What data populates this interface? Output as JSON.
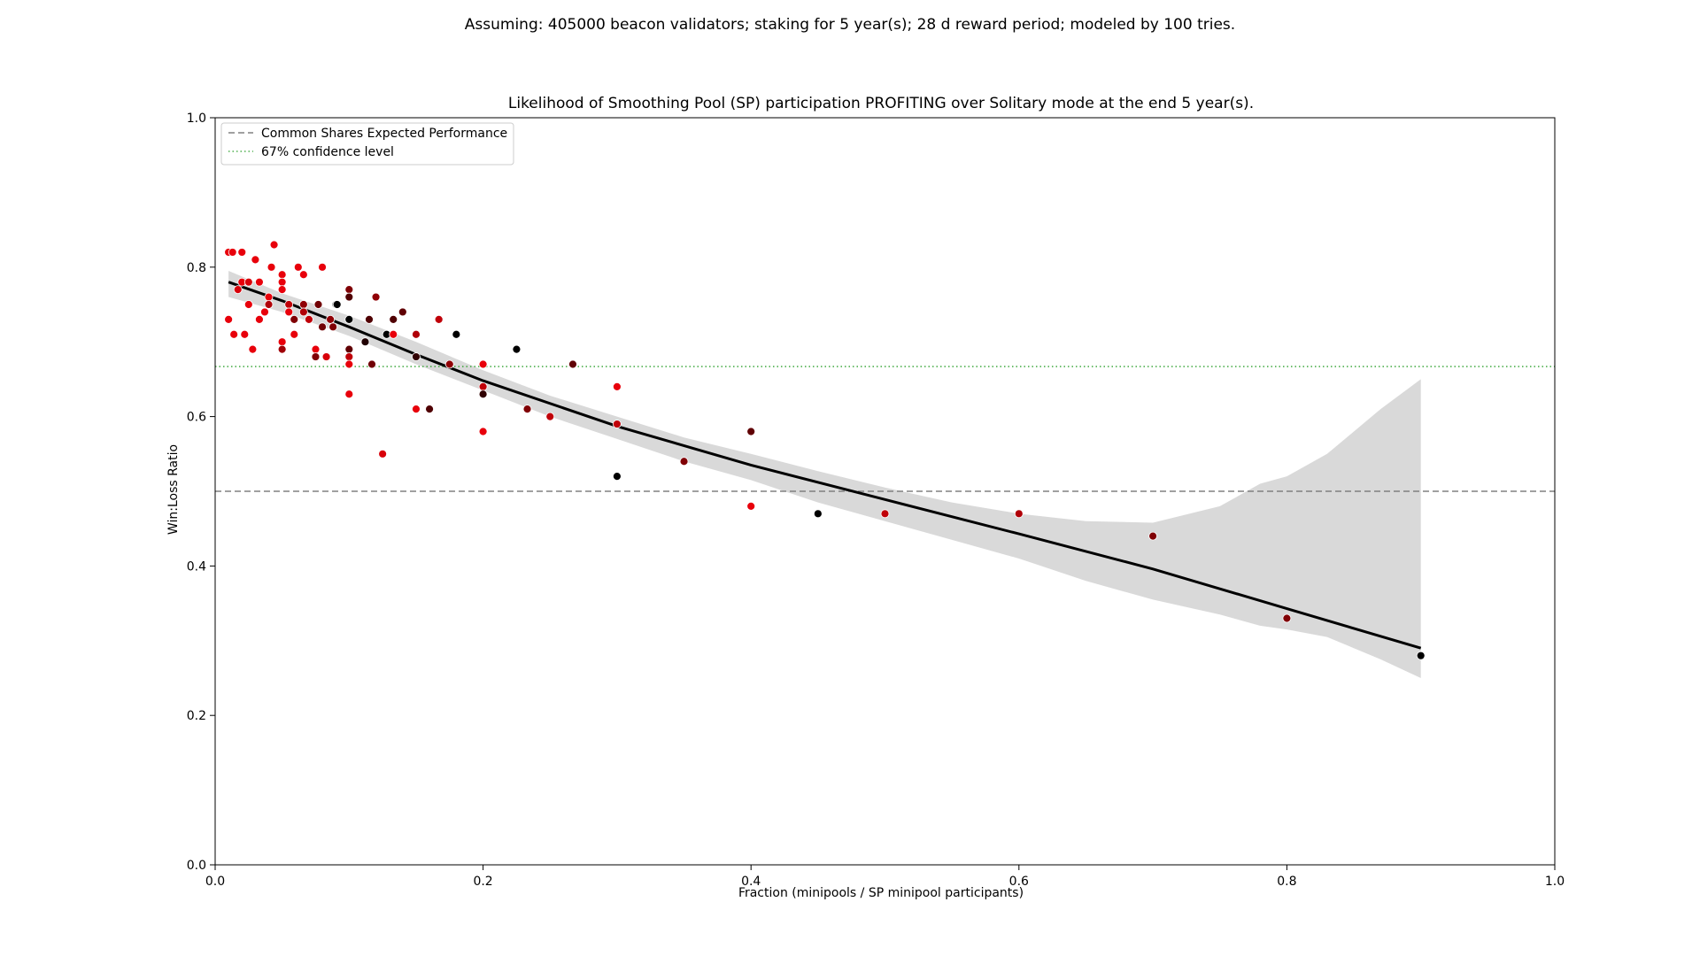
{
  "suptitle": "Assuming: 405000 beacon validators; staking for 5 year(s); 28 d reward period; modeled by 100 tries.",
  "chart_data": {
    "type": "scatter",
    "title": "Likelihood of Smoothing Pool (SP) participation PROFITING over Solitary mode at the end 5 year(s).",
    "xlabel": "Fraction (minipools / SP minipool participants)",
    "ylabel": "Win:Loss Ratio",
    "xlim": [
      0.0,
      1.0
    ],
    "ylim": [
      0.0,
      1.0
    ],
    "xticks": [
      0.0,
      0.2,
      0.4,
      0.6,
      0.8,
      1.0
    ],
    "yticks": [
      0.0,
      0.2,
      0.4,
      0.6,
      0.8,
      1.0
    ],
    "xtick_labels": [
      "0.0",
      "0.2",
      "0.4",
      "0.6",
      "0.8",
      "1.0"
    ],
    "ytick_labels": [
      "0.0",
      "0.2",
      "0.4",
      "0.6",
      "0.8",
      "1.0"
    ],
    "grid": false,
    "legend_position": "top-left",
    "legend": [
      {
        "label": "Common Shares Expected Performance",
        "style": "dashed",
        "color": "#808080"
      },
      {
        "label": "67% confidence level",
        "style": "dotted",
        "color": "#2ca02c"
      }
    ],
    "hlines": [
      {
        "y": 0.5,
        "style": "dashed",
        "color": "#808080"
      },
      {
        "y": 0.667,
        "style": "dotted",
        "color": "#2ca02c"
      }
    ],
    "points": [
      {
        "x": 0.01,
        "y": 0.82,
        "color": "#e8000b"
      },
      {
        "x": 0.013,
        "y": 0.82,
        "color": "#e8000b"
      },
      {
        "x": 0.01,
        "y": 0.73,
        "color": "#e8000b"
      },
      {
        "x": 0.014,
        "y": 0.71,
        "color": "#e8000b"
      },
      {
        "x": 0.017,
        "y": 0.77,
        "color": "#d8000a"
      },
      {
        "x": 0.02,
        "y": 0.78,
        "color": "#e8000b"
      },
      {
        "x": 0.02,
        "y": 0.82,
        "color": "#e8000b"
      },
      {
        "x": 0.022,
        "y": 0.71,
        "color": "#e8000b"
      },
      {
        "x": 0.025,
        "y": 0.75,
        "color": "#e8000b"
      },
      {
        "x": 0.025,
        "y": 0.78,
        "color": "#d8000a"
      },
      {
        "x": 0.028,
        "y": 0.69,
        "color": "#e8000b"
      },
      {
        "x": 0.03,
        "y": 0.81,
        "color": "#e8000b"
      },
      {
        "x": 0.033,
        "y": 0.78,
        "color": "#e8000b"
      },
      {
        "x": 0.033,
        "y": 0.73,
        "color": "#e8000b"
      },
      {
        "x": 0.037,
        "y": 0.74,
        "color": "#e8000b"
      },
      {
        "x": 0.04,
        "y": 0.76,
        "color": "#e8000b"
      },
      {
        "x": 0.04,
        "y": 0.75,
        "color": "#b00008"
      },
      {
        "x": 0.042,
        "y": 0.8,
        "color": "#e8000b"
      },
      {
        "x": 0.044,
        "y": 0.83,
        "color": "#e8000b"
      },
      {
        "x": 0.05,
        "y": 0.79,
        "color": "#e8000b"
      },
      {
        "x": 0.05,
        "y": 0.78,
        "color": "#e8000b"
      },
      {
        "x": 0.05,
        "y": 0.77,
        "color": "#e8000b"
      },
      {
        "x": 0.05,
        "y": 0.7,
        "color": "#e8000b"
      },
      {
        "x": 0.05,
        "y": 0.69,
        "color": "#a00007"
      },
      {
        "x": 0.055,
        "y": 0.75,
        "color": "#c00009"
      },
      {
        "x": 0.055,
        "y": 0.74,
        "color": "#e8000b"
      },
      {
        "x": 0.059,
        "y": 0.73,
        "color": "#800005"
      },
      {
        "x": 0.059,
        "y": 0.71,
        "color": "#e8000b"
      },
      {
        "x": 0.062,
        "y": 0.8,
        "color": "#e8000b"
      },
      {
        "x": 0.066,
        "y": 0.79,
        "color": "#e8000b"
      },
      {
        "x": 0.066,
        "y": 0.75,
        "color": "#900006"
      },
      {
        "x": 0.066,
        "y": 0.74,
        "color": "#b00008"
      },
      {
        "x": 0.07,
        "y": 0.73,
        "color": "#c00009"
      },
      {
        "x": 0.075,
        "y": 0.69,
        "color": "#e8000b"
      },
      {
        "x": 0.075,
        "y": 0.68,
        "color": "#800005"
      },
      {
        "x": 0.077,
        "y": 0.75,
        "color": "#700004"
      },
      {
        "x": 0.08,
        "y": 0.8,
        "color": "#e8000b"
      },
      {
        "x": 0.08,
        "y": 0.72,
        "color": "#700004"
      },
      {
        "x": 0.083,
        "y": 0.68,
        "color": "#d8000a"
      },
      {
        "x": 0.086,
        "y": 0.73,
        "color": "#900006"
      },
      {
        "x": 0.088,
        "y": 0.72,
        "color": "#800005"
      },
      {
        "x": 0.09,
        "y": 0.75,
        "color": "#a0a0a0"
      },
      {
        "x": 0.091,
        "y": 0.75,
        "color": "#000000"
      },
      {
        "x": 0.1,
        "y": 0.77,
        "color": "#800005"
      },
      {
        "x": 0.1,
        "y": 0.76,
        "color": "#500003"
      },
      {
        "x": 0.1,
        "y": 0.73,
        "color": "#000000"
      },
      {
        "x": 0.1,
        "y": 0.69,
        "color": "#600004"
      },
      {
        "x": 0.1,
        "y": 0.68,
        "color": "#c00009"
      },
      {
        "x": 0.1,
        "y": 0.67,
        "color": "#e8000b"
      },
      {
        "x": 0.1,
        "y": 0.63,
        "color": "#e8000b"
      },
      {
        "x": 0.112,
        "y": 0.7,
        "color": "#200001"
      },
      {
        "x": 0.115,
        "y": 0.73,
        "color": "#500003"
      },
      {
        "x": 0.117,
        "y": 0.67,
        "color": "#700004"
      },
      {
        "x": 0.12,
        "y": 0.76,
        "color": "#900006"
      },
      {
        "x": 0.125,
        "y": 0.55,
        "color": "#d8000a"
      },
      {
        "x": 0.128,
        "y": 0.71,
        "color": "#000000"
      },
      {
        "x": 0.133,
        "y": 0.73,
        "color": "#500003"
      },
      {
        "x": 0.133,
        "y": 0.71,
        "color": "#e8000b"
      },
      {
        "x": 0.14,
        "y": 0.74,
        "color": "#600004"
      },
      {
        "x": 0.15,
        "y": 0.71,
        "color": "#b00008"
      },
      {
        "x": 0.15,
        "y": 0.68,
        "color": "#300002"
      },
      {
        "x": 0.15,
        "y": 0.61,
        "color": "#e8000b"
      },
      {
        "x": 0.16,
        "y": 0.61,
        "color": "#500003"
      },
      {
        "x": 0.167,
        "y": 0.73,
        "color": "#c00009"
      },
      {
        "x": 0.175,
        "y": 0.67,
        "color": "#900006"
      },
      {
        "x": 0.18,
        "y": 0.71,
        "color": "#000000"
      },
      {
        "x": 0.2,
        "y": 0.67,
        "color": "#e8000b"
      },
      {
        "x": 0.2,
        "y": 0.64,
        "color": "#c00009"
      },
      {
        "x": 0.2,
        "y": 0.63,
        "color": "#300002"
      },
      {
        "x": 0.2,
        "y": 0.58,
        "color": "#e8000b"
      },
      {
        "x": 0.225,
        "y": 0.69,
        "color": "#000000"
      },
      {
        "x": 0.233,
        "y": 0.61,
        "color": "#800005"
      },
      {
        "x": 0.25,
        "y": 0.6,
        "color": "#c00009"
      },
      {
        "x": 0.267,
        "y": 0.67,
        "color": "#600004"
      },
      {
        "x": 0.3,
        "y": 0.64,
        "color": "#e8000b"
      },
      {
        "x": 0.3,
        "y": 0.59,
        "color": "#c00009"
      },
      {
        "x": 0.3,
        "y": 0.52,
        "color": "#000000"
      },
      {
        "x": 0.35,
        "y": 0.54,
        "color": "#800005"
      },
      {
        "x": 0.4,
        "y": 0.58,
        "color": "#600004"
      },
      {
        "x": 0.4,
        "y": 0.48,
        "color": "#e8000b"
      },
      {
        "x": 0.45,
        "y": 0.47,
        "color": "#000000"
      },
      {
        "x": 0.5,
        "y": 0.47,
        "color": "#c00009"
      },
      {
        "x": 0.6,
        "y": 0.47,
        "color": "#b00008"
      },
      {
        "x": 0.7,
        "y": 0.44,
        "color": "#800005"
      },
      {
        "x": 0.8,
        "y": 0.33,
        "color": "#800005"
      },
      {
        "x": 0.9,
        "y": 0.28,
        "color": "#000000"
      }
    ],
    "regression_line": {
      "x": [
        0.01,
        0.05,
        0.1,
        0.15,
        0.2,
        0.3,
        0.4,
        0.5,
        0.6,
        0.7,
        0.8,
        0.9
      ],
      "y": [
        0.78,
        0.755,
        0.72,
        0.683,
        0.648,
        0.587,
        0.535,
        0.489,
        0.443,
        0.396,
        0.343,
        0.29
      ],
      "color": "#000000"
    },
    "confidence_band": {
      "x": [
        0.01,
        0.05,
        0.1,
        0.15,
        0.2,
        0.25,
        0.3,
        0.35,
        0.4,
        0.45,
        0.5,
        0.55,
        0.6,
        0.65,
        0.7,
        0.75,
        0.78,
        0.8,
        0.83,
        0.85,
        0.87,
        0.9
      ],
      "upper": [
        0.795,
        0.765,
        0.735,
        0.7,
        0.662,
        0.628,
        0.6,
        0.572,
        0.55,
        0.527,
        0.505,
        0.485,
        0.47,
        0.46,
        0.458,
        0.48,
        0.51,
        0.52,
        0.55,
        0.58,
        0.61,
        0.65
      ],
      "lower": [
        0.76,
        0.74,
        0.708,
        0.67,
        0.635,
        0.6,
        0.57,
        0.54,
        0.515,
        0.485,
        0.46,
        0.435,
        0.41,
        0.38,
        0.355,
        0.335,
        0.32,
        0.315,
        0.305,
        0.29,
        0.275,
        0.25
      ],
      "color": "#d9d9d9"
    }
  }
}
